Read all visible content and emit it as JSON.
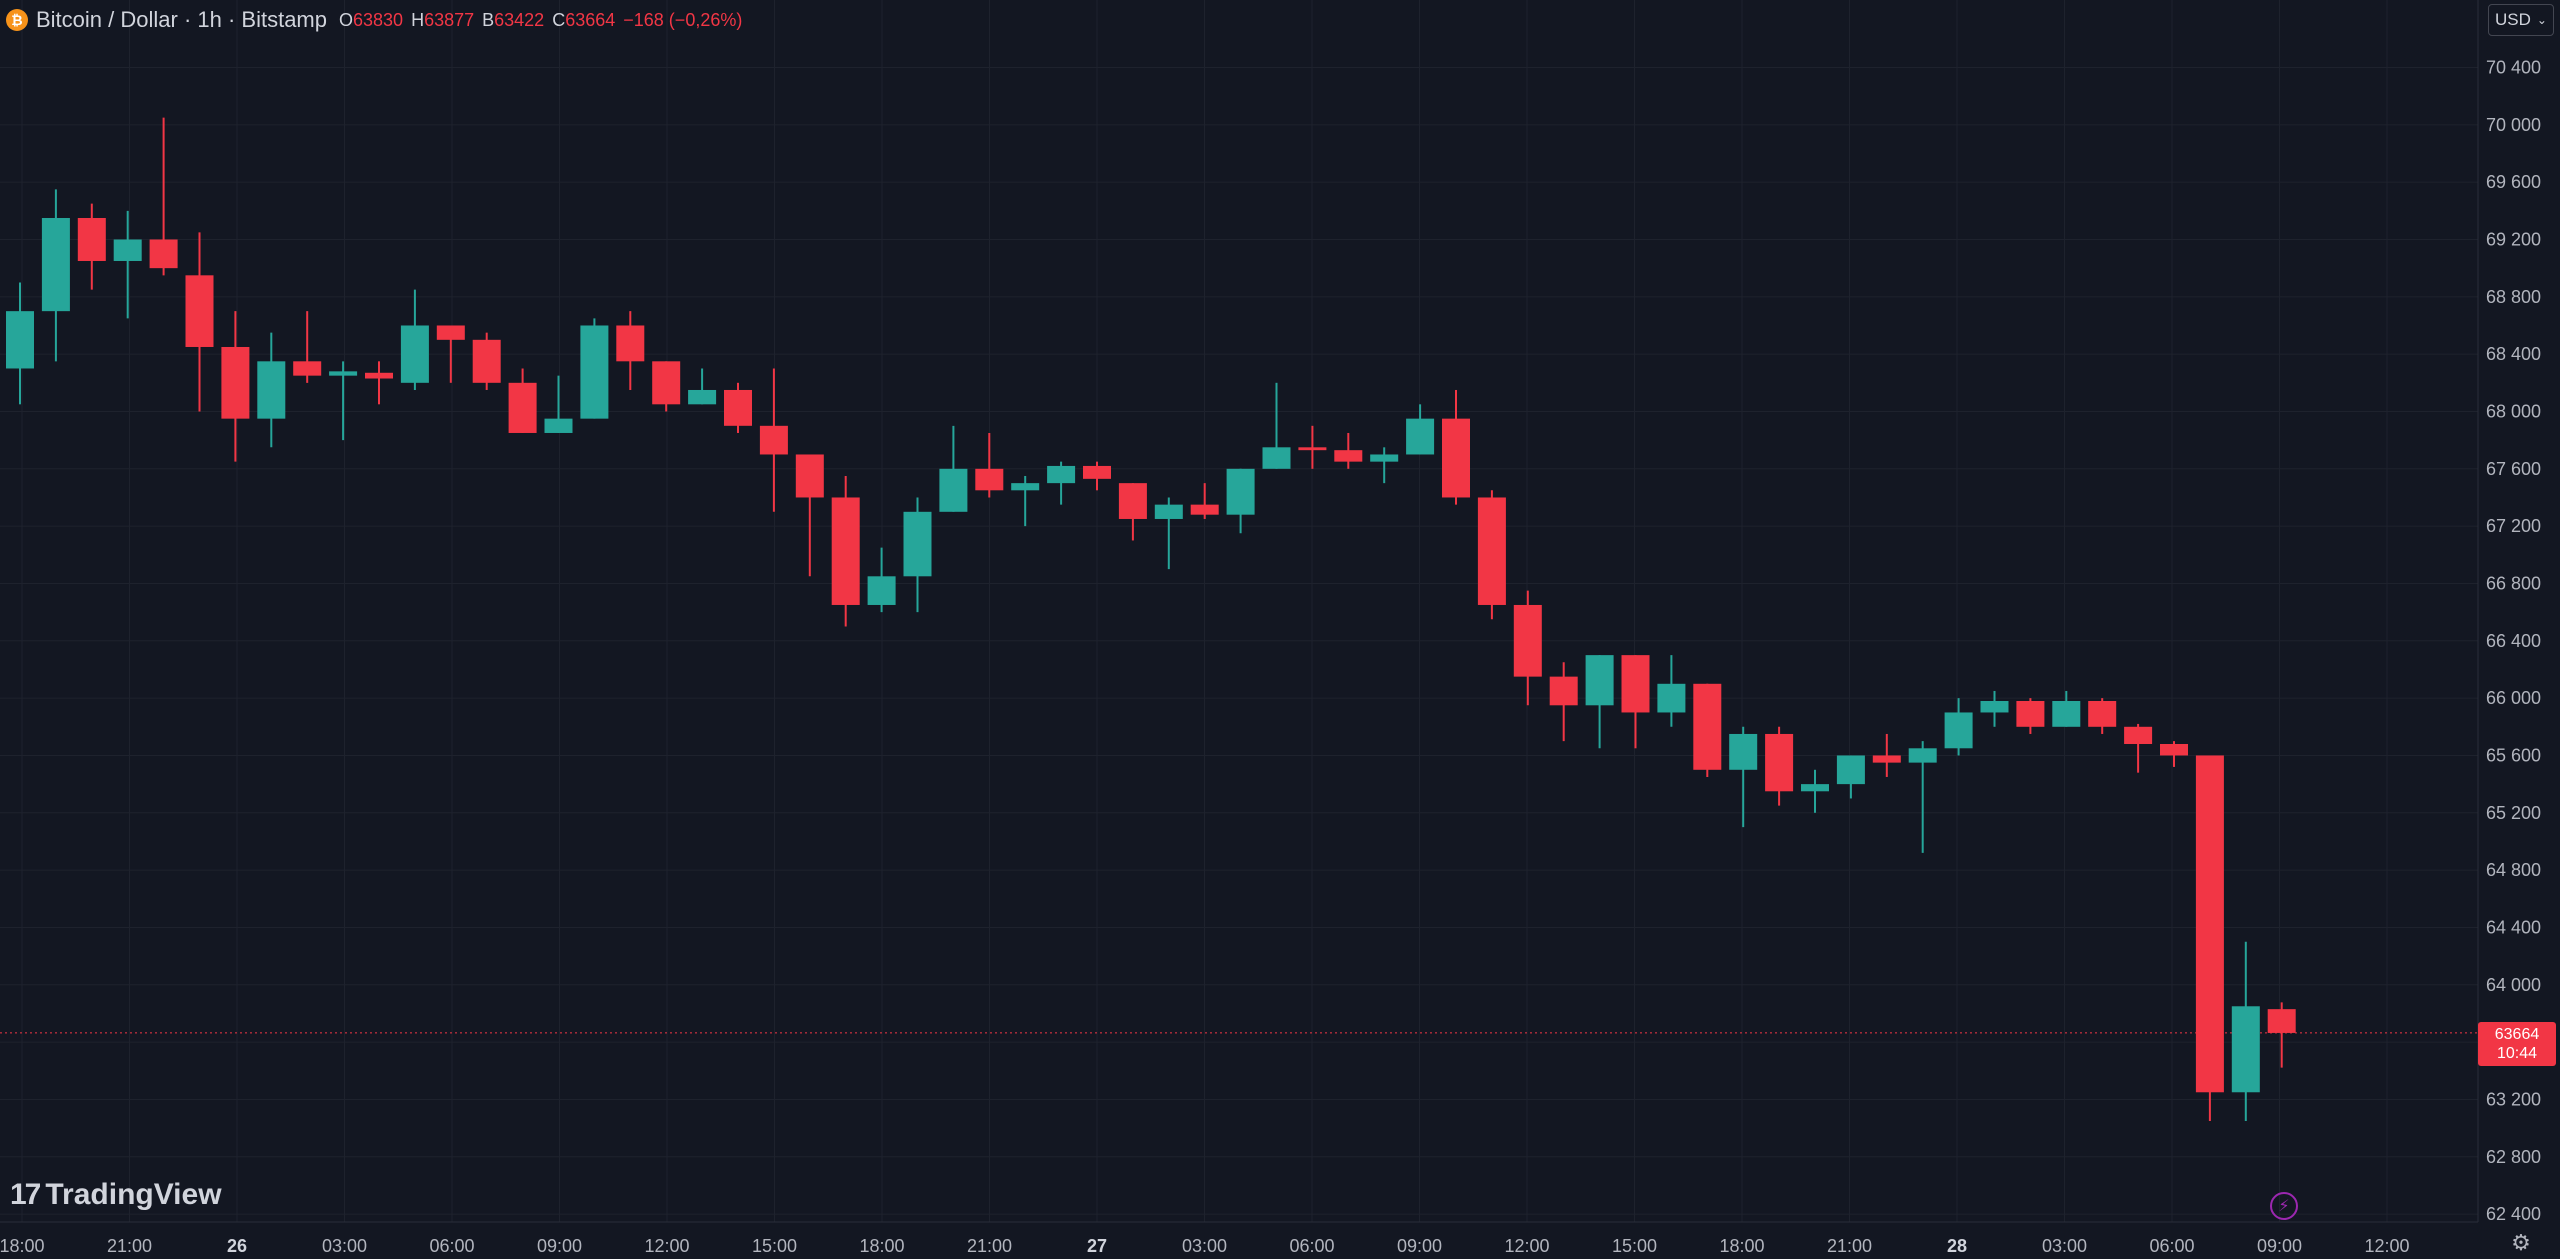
{
  "legend": {
    "symbol": "Bitcoin / Dollar · 1h · Bitstamp",
    "o_label": "O",
    "o_value": "63830",
    "h_label": "H",
    "h_value": "63877",
    "l_label": "B",
    "l_value": "63422",
    "c_label": "C",
    "c_value": "63664",
    "change": "−168 (−0,26%)"
  },
  "currency": "USD",
  "brand": "TradingView",
  "last_price": {
    "price": "63664",
    "countdown": "10:44"
  },
  "colors": {
    "up": "#26a69a",
    "down": "#f23645",
    "background": "#131722",
    "grid": "#1e222d",
    "axis_text": "#b2b5be"
  },
  "icons": {
    "symbol": "bitcoin-icon",
    "alert": "lightning-icon",
    "settings": "gear-icon",
    "dropdown": "chevron-down-icon"
  },
  "chart_data": {
    "type": "candlestick",
    "y_axis_side": "right",
    "ylim": [
      62360,
      70560
    ],
    "y_ticks": [
      70400,
      70000,
      69600,
      69200,
      68800,
      68400,
      68000,
      67600,
      67200,
      66800,
      66400,
      66000,
      65600,
      65200,
      64800,
      64400,
      64000,
      63600,
      63200,
      62800,
      62400
    ],
    "x_ticks": [
      "18:00",
      "21:00",
      "26",
      "03:00",
      "06:00",
      "09:00",
      "12:00",
      "15:00",
      "18:00",
      "21:00",
      "27",
      "03:00",
      "06:00",
      "09:00",
      "12:00",
      "15:00",
      "18:00",
      "21:00",
      "28",
      "03:00",
      "06:00",
      "09:00",
      "12:00"
    ],
    "x_ticks_bold": [
      false,
      false,
      true,
      false,
      false,
      false,
      false,
      false,
      false,
      false,
      true,
      false,
      false,
      false,
      false,
      false,
      false,
      false,
      true,
      false,
      false,
      false,
      false
    ],
    "candles": [
      {
        "o": 68300,
        "h": 68900,
        "l": 68050,
        "c": 68700
      },
      {
        "o": 68700,
        "h": 69550,
        "l": 68350,
        "c": 69350
      },
      {
        "o": 69350,
        "h": 69450,
        "l": 68850,
        "c": 69050
      },
      {
        "o": 69050,
        "h": 69400,
        "l": 68650,
        "c": 69200
      },
      {
        "o": 69200,
        "h": 70050,
        "l": 68950,
        "c": 69000
      },
      {
        "o": 68950,
        "h": 69250,
        "l": 68000,
        "c": 68450
      },
      {
        "o": 68450,
        "h": 68700,
        "l": 67650,
        "c": 67950
      },
      {
        "o": 67950,
        "h": 68550,
        "l": 67750,
        "c": 68350
      },
      {
        "o": 68350,
        "h": 68700,
        "l": 68200,
        "c": 68250
      },
      {
        "o": 68250,
        "h": 68350,
        "l": 67800,
        "c": 68280
      },
      {
        "o": 68270,
        "h": 68350,
        "l": 68050,
        "c": 68230
      },
      {
        "o": 68200,
        "h": 68850,
        "l": 68150,
        "c": 68600
      },
      {
        "o": 68600,
        "h": 68600,
        "l": 68200,
        "c": 68500
      },
      {
        "o": 68500,
        "h": 68550,
        "l": 68150,
        "c": 68200
      },
      {
        "o": 68200,
        "h": 68300,
        "l": 67850,
        "c": 67850
      },
      {
        "o": 67850,
        "h": 68250,
        "l": 67850,
        "c": 67950
      },
      {
        "o": 67950,
        "h": 68650,
        "l": 67950,
        "c": 68600
      },
      {
        "o": 68600,
        "h": 68700,
        "l": 68150,
        "c": 68350
      },
      {
        "o": 68350,
        "h": 68350,
        "l": 68000,
        "c": 68050
      },
      {
        "o": 68050,
        "h": 68300,
        "l": 68050,
        "c": 68150
      },
      {
        "o": 68150,
        "h": 68200,
        "l": 67850,
        "c": 67900
      },
      {
        "o": 67900,
        "h": 68300,
        "l": 67300,
        "c": 67700
      },
      {
        "o": 67700,
        "h": 67700,
        "l": 66850,
        "c": 67400
      },
      {
        "o": 67400,
        "h": 67550,
        "l": 66500,
        "c": 66650
      },
      {
        "o": 66650,
        "h": 67050,
        "l": 66600,
        "c": 66850
      },
      {
        "o": 66850,
        "h": 67400,
        "l": 66600,
        "c": 67300
      },
      {
        "o": 67300,
        "h": 67900,
        "l": 67300,
        "c": 67600
      },
      {
        "o": 67600,
        "h": 67850,
        "l": 67400,
        "c": 67450
      },
      {
        "o": 67450,
        "h": 67550,
        "l": 67200,
        "c": 67500
      },
      {
        "o": 67500,
        "h": 67650,
        "l": 67350,
        "c": 67620
      },
      {
        "o": 67620,
        "h": 67650,
        "l": 67450,
        "c": 67530
      },
      {
        "o": 67500,
        "h": 67500,
        "l": 67100,
        "c": 67250
      },
      {
        "o": 67250,
        "h": 67400,
        "l": 66900,
        "c": 67350
      },
      {
        "o": 67350,
        "h": 67500,
        "l": 67250,
        "c": 67280
      },
      {
        "o": 67280,
        "h": 67600,
        "l": 67150,
        "c": 67600
      },
      {
        "o": 67600,
        "h": 68200,
        "l": 67600,
        "c": 67750
      },
      {
        "o": 67750,
        "h": 67900,
        "l": 67600,
        "c": 67730
      },
      {
        "o": 67730,
        "h": 67850,
        "l": 67600,
        "c": 67650
      },
      {
        "o": 67650,
        "h": 67750,
        "l": 67500,
        "c": 67700
      },
      {
        "o": 67700,
        "h": 68050,
        "l": 67700,
        "c": 67950
      },
      {
        "o": 67950,
        "h": 68150,
        "l": 67350,
        "c": 67400
      },
      {
        "o": 67400,
        "h": 67450,
        "l": 66550,
        "c": 66650
      },
      {
        "o": 66650,
        "h": 66750,
        "l": 65950,
        "c": 66150
      },
      {
        "o": 66150,
        "h": 66250,
        "l": 65700,
        "c": 65950
      },
      {
        "o": 65950,
        "h": 66300,
        "l": 65650,
        "c": 66300
      },
      {
        "o": 66300,
        "h": 66300,
        "l": 65650,
        "c": 65900
      },
      {
        "o": 65900,
        "h": 66300,
        "l": 65800,
        "c": 66100
      },
      {
        "o": 66100,
        "h": 66100,
        "l": 65450,
        "c": 65500
      },
      {
        "o": 65500,
        "h": 65800,
        "l": 65100,
        "c": 65750
      },
      {
        "o": 65750,
        "h": 65800,
        "l": 65250,
        "c": 65350
      },
      {
        "o": 65350,
        "h": 65500,
        "l": 65200,
        "c": 65400
      },
      {
        "o": 65400,
        "h": 65600,
        "l": 65300,
        "c": 65600
      },
      {
        "o": 65600,
        "h": 65750,
        "l": 65450,
        "c": 65550
      },
      {
        "o": 65550,
        "h": 65700,
        "l": 64920,
        "c": 65650
      },
      {
        "o": 65650,
        "h": 66000,
        "l": 65600,
        "c": 65900
      },
      {
        "o": 65900,
        "h": 66050,
        "l": 65800,
        "c": 65980
      },
      {
        "o": 65980,
        "h": 66000,
        "l": 65750,
        "c": 65800
      },
      {
        "o": 65800,
        "h": 66050,
        "l": 65800,
        "c": 65980
      },
      {
        "o": 65980,
        "h": 66000,
        "l": 65750,
        "c": 65800
      },
      {
        "o": 65800,
        "h": 65820,
        "l": 65480,
        "c": 65680
      },
      {
        "o": 65680,
        "h": 65700,
        "l": 65520,
        "c": 65600
      },
      {
        "o": 65600,
        "h": 65600,
        "l": 63050,
        "c": 63250
      },
      {
        "o": 63250,
        "h": 64300,
        "l": 63050,
        "c": 63850
      },
      {
        "o": 63830,
        "h": 63877,
        "l": 63422,
        "c": 63664
      }
    ]
  }
}
